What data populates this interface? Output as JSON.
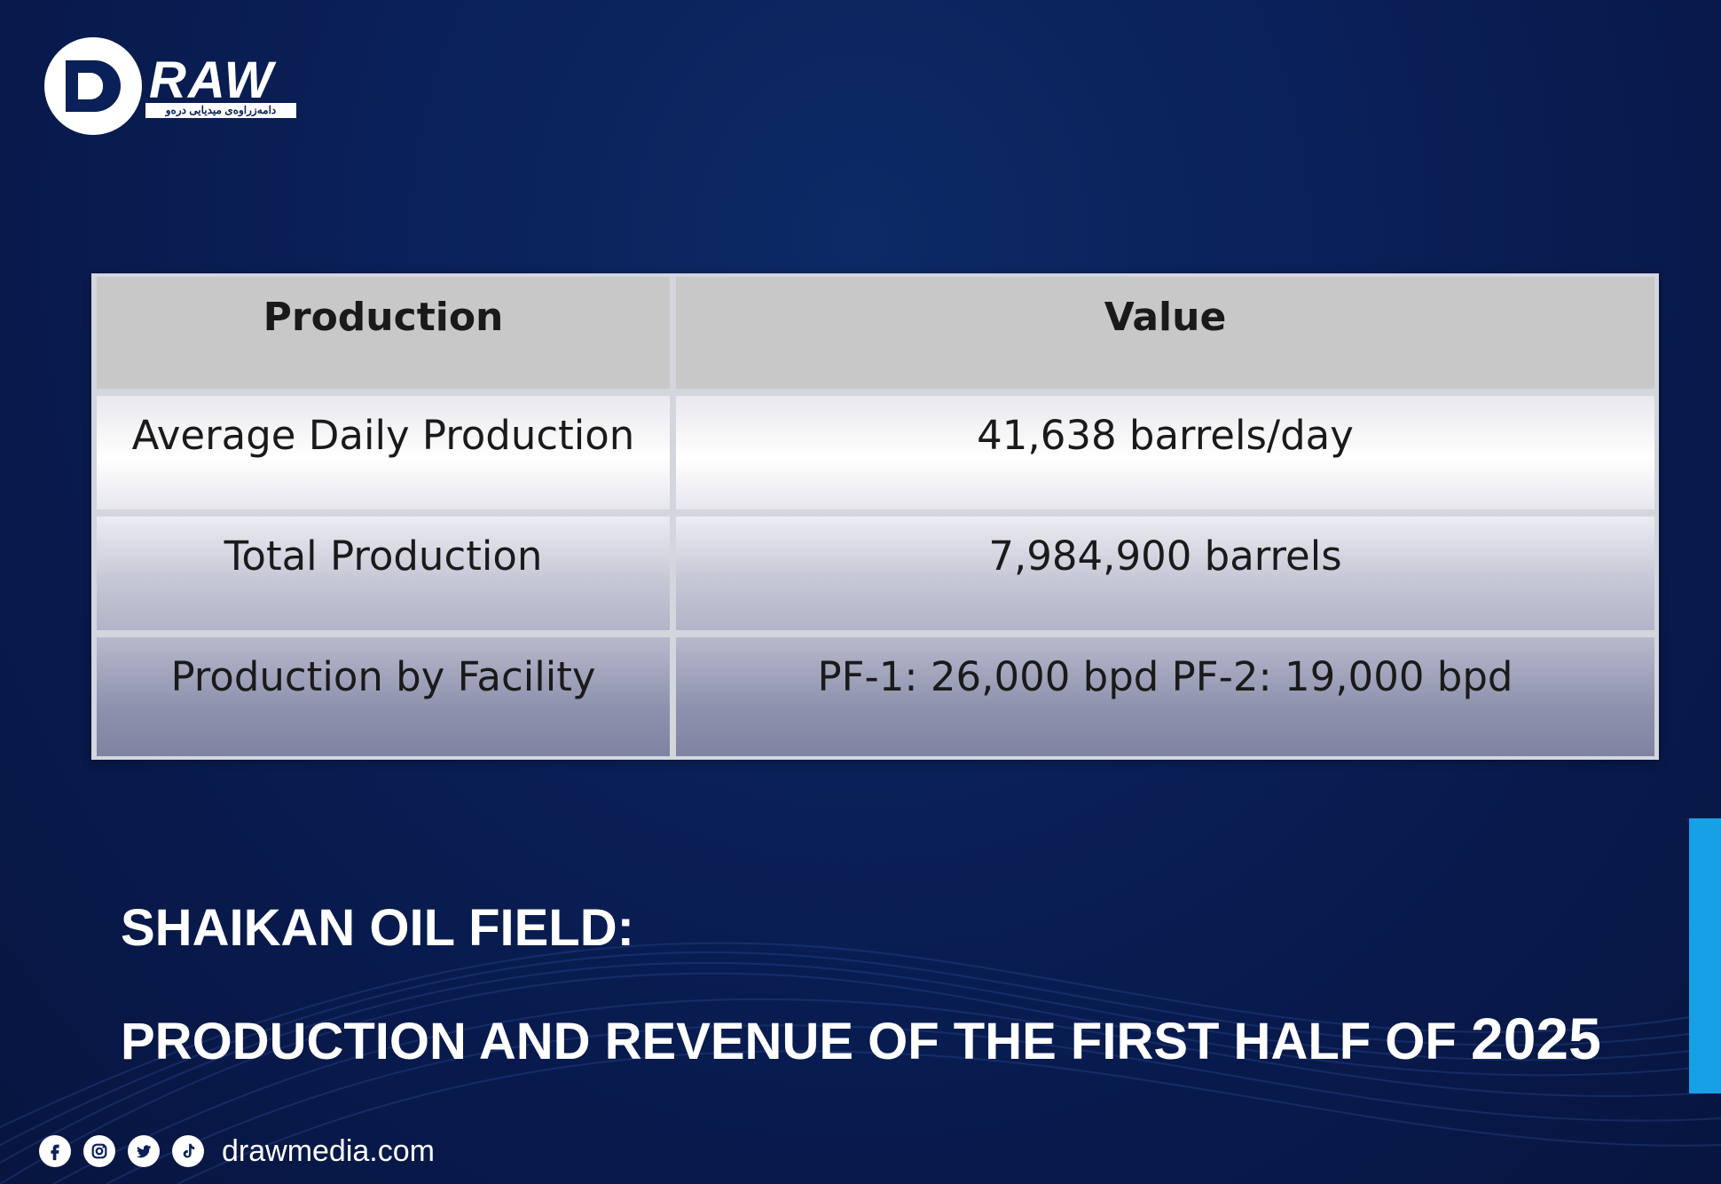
{
  "brand": {
    "logo_word": "RAW",
    "logo_tagline": "دامەزراوەی میدیایی درەو"
  },
  "table": {
    "headers": [
      "Production",
      "Value"
    ],
    "rows": [
      {
        "label": "Average Daily Production",
        "value": "41,638 barrels/day"
      },
      {
        "label": "Total Production",
        "value": "7,984,900 barrels"
      },
      {
        "label": "Production by Facility",
        "value": "PF-1: 26,000 bpd PF-2: 19,000 bpd"
      }
    ]
  },
  "title": {
    "line1": "SHAIKAN OIL FIELD:",
    "line2_text": "PRODUCTION AND REVENUE OF THE FIRST HALF OF",
    "line2_year": "2025"
  },
  "footer": {
    "icons": [
      "facebook-icon",
      "instagram-icon",
      "twitter-icon",
      "tiktok-icon"
    ],
    "website": "drawmedia.com"
  },
  "colors": {
    "background": "#0a2058",
    "accent": "#18a0e6",
    "header_cell": "#c8c8c8"
  }
}
